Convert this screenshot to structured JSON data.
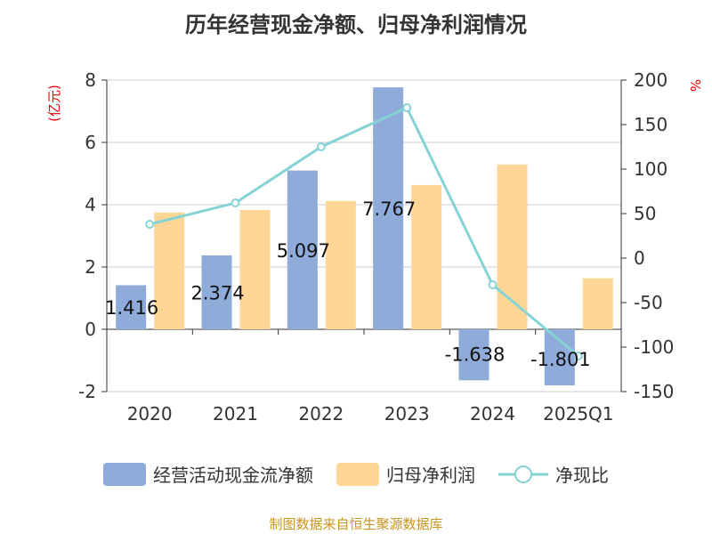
{
  "chart_data": {
    "type": "bar",
    "title": "历年经营现金净额、归母净利润情况",
    "categories": [
      "2020",
      "2021",
      "2022",
      "2023",
      "2024",
      "2025Q1"
    ],
    "ylabel_left": "(亿元)",
    "ylabel_right": "%",
    "ylim_left": [
      -2,
      8
    ],
    "yticks_left": [
      "-2",
      "0",
      "2",
      "4",
      "6",
      "8"
    ],
    "ylim_right": [
      -150,
      200
    ],
    "yticks_right": [
      "-150",
      "-100",
      "-50",
      "0",
      "50",
      "100",
      "150",
      "200"
    ],
    "series": [
      {
        "name": "经营活动现金流净额",
        "type": "bar",
        "color": "#8eabd9",
        "values": [
          1.416,
          2.374,
          5.097,
          7.767,
          -1.638,
          -1.801
        ],
        "labels": [
          "1.416",
          "2.374",
          "5.097",
          "7.767",
          "-1.638",
          "-1.801"
        ]
      },
      {
        "name": "归母净利润",
        "type": "bar",
        "color": "#fed797",
        "values": [
          3.75,
          3.83,
          4.12,
          4.63,
          5.29,
          1.64
        ]
      },
      {
        "name": "净现比",
        "type": "line",
        "axis": "right",
        "color": "#86d3d6",
        "values": [
          38,
          62,
          125,
          169,
          -30,
          -110
        ]
      }
    ]
  },
  "source": "制图数据来自恒生聚源数据库"
}
